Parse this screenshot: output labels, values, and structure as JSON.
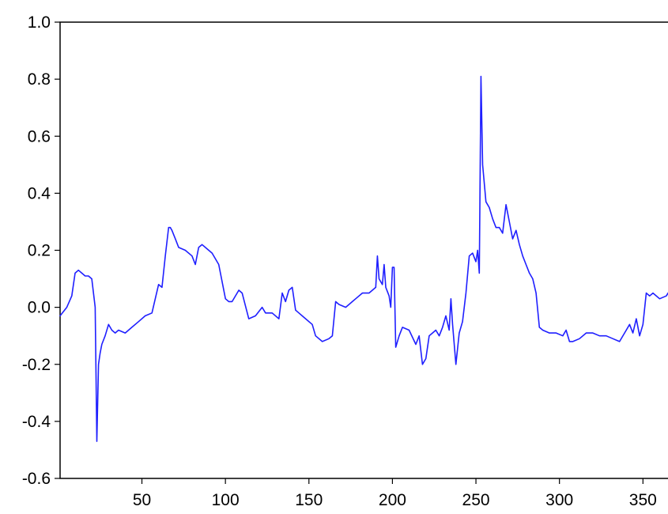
{
  "chart_data": {
    "type": "line",
    "title": "",
    "xlabel": "",
    "ylabel": "",
    "xlim": [
      1,
      365
    ],
    "ylim": [
      -0.6,
      1.0
    ],
    "x_ticks": [
      50,
      100,
      150,
      200,
      250,
      300,
      350
    ],
    "x_tick_labels": [
      "50",
      "100",
      "150",
      "200",
      "250",
      "300",
      "350"
    ],
    "y_ticks": [
      -0.6,
      -0.4,
      -0.2,
      0.0,
      0.2,
      0.4,
      0.6,
      0.8,
      1.0
    ],
    "y_tick_labels": [
      "-0.6",
      "-0.4",
      "-0.2",
      "0.0",
      "0.2",
      "0.4",
      "0.6",
      "0.8",
      "1.0"
    ],
    "grid": false,
    "line_color": "#1f1fff",
    "series": [
      {
        "x": [
          1,
          5,
          8,
          10,
          12,
          14,
          16,
          18,
          20,
          22,
          23,
          24,
          25,
          26,
          28,
          30,
          32,
          34,
          36,
          40,
          44,
          48,
          52,
          56,
          60,
          62,
          64,
          66,
          67,
          68,
          70,
          72,
          76,
          80,
          82,
          84,
          86,
          88,
          92,
          96,
          100,
          102,
          104,
          108,
          110,
          114,
          118,
          122,
          124,
          128,
          132,
          134,
          136,
          138,
          140,
          142,
          144,
          148,
          152,
          154,
          158,
          162,
          164,
          166,
          168,
          172,
          176,
          178,
          182,
          186,
          190,
          191,
          192,
          194,
          195,
          196,
          198,
          199,
          200,
          201,
          202,
          204,
          206,
          210,
          214,
          216,
          218,
          220,
          222,
          224,
          226,
          228,
          230,
          232,
          234,
          235,
          236,
          238,
          240,
          242,
          244,
          246,
          248,
          250,
          251,
          252,
          253,
          254,
          256,
          258,
          260,
          262,
          264,
          266,
          268,
          270,
          272,
          274,
          276,
          278,
          280,
          282,
          284,
          286,
          288,
          290,
          294,
          298,
          302,
          304,
          306,
          308,
          312,
          316,
          320,
          324,
          328,
          332,
          336,
          340,
          342,
          344,
          346,
          348,
          350,
          352,
          354,
          356,
          360,
          364,
          365
        ],
        "y": [
          -0.03,
          0.0,
          0.04,
          0.12,
          0.13,
          0.12,
          0.11,
          0.11,
          0.1,
          0.0,
          -0.47,
          -0.2,
          -0.16,
          -0.13,
          -0.1,
          -0.06,
          -0.08,
          -0.09,
          -0.08,
          -0.09,
          -0.07,
          -0.05,
          -0.03,
          -0.02,
          0.08,
          0.07,
          0.18,
          0.28,
          0.28,
          0.27,
          0.24,
          0.21,
          0.2,
          0.18,
          0.15,
          0.21,
          0.22,
          0.21,
          0.19,
          0.15,
          0.03,
          0.02,
          0.02,
          0.06,
          0.05,
          -0.04,
          -0.03,
          0.0,
          -0.02,
          -0.02,
          -0.04,
          0.05,
          0.02,
          0.06,
          0.07,
          -0.01,
          -0.02,
          -0.04,
          -0.06,
          -0.1,
          -0.12,
          -0.11,
          -0.1,
          0.02,
          0.01,
          0.0,
          0.02,
          0.03,
          0.05,
          0.05,
          0.07,
          0.18,
          0.1,
          0.08,
          0.15,
          0.07,
          0.04,
          0.0,
          0.14,
          0.14,
          -0.14,
          -0.1,
          -0.07,
          -0.08,
          -0.13,
          -0.1,
          -0.2,
          -0.18,
          -0.1,
          -0.09,
          -0.08,
          -0.1,
          -0.07,
          -0.03,
          -0.08,
          0.03,
          -0.06,
          -0.2,
          -0.09,
          -0.05,
          0.05,
          0.18,
          0.19,
          0.16,
          0.2,
          0.12,
          0.81,
          0.5,
          0.37,
          0.35,
          0.31,
          0.28,
          0.28,
          0.26,
          0.36,
          0.3,
          0.24,
          0.27,
          0.22,
          0.18,
          0.15,
          0.12,
          0.1,
          0.05,
          -0.07,
          -0.08,
          -0.09,
          -0.09,
          -0.1,
          -0.08,
          -0.12,
          -0.12,
          -0.11,
          -0.09,
          -0.09,
          -0.1,
          -0.1,
          -0.11,
          -0.12,
          -0.08,
          -0.06,
          -0.09,
          -0.04,
          -0.1,
          -0.06,
          0.05,
          0.04,
          0.05,
          0.03,
          0.04,
          0.05
        ]
      }
    ]
  }
}
